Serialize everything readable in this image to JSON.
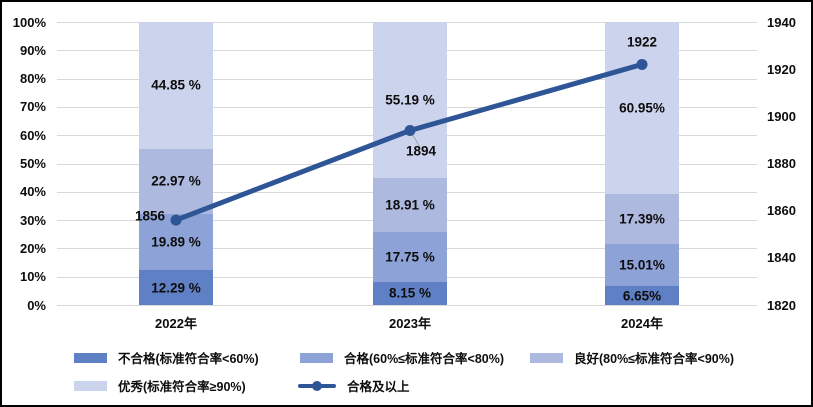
{
  "chart_data": {
    "type": "bar",
    "subtype": "stacked-percent-with-line",
    "categories": [
      "2022年",
      "2023年",
      "2024年"
    ],
    "left_axis": {
      "ticks": [
        "0%",
        "10%",
        "20%",
        "30%",
        "40%",
        "50%",
        "60%",
        "70%",
        "80%",
        "90%",
        "100%"
      ],
      "min": 0,
      "max": 100
    },
    "right_axis": {
      "ticks": [
        "1820",
        "1840",
        "1860",
        "1880",
        "1900",
        "1920",
        "1940"
      ],
      "min": 1820,
      "max": 1940
    },
    "series": [
      {
        "name": "不合格(标准符合率<60%)",
        "type": "bar",
        "color": "#6080c6",
        "values": [
          12.29,
          8.15,
          6.65
        ],
        "labels": [
          "12.29 %",
          "8.15 %",
          "6.65%"
        ]
      },
      {
        "name": "合格(60%≤标准符合率<80%)",
        "type": "bar",
        "color": "#8da2d6",
        "values": [
          19.89,
          17.75,
          15.01
        ],
        "labels": [
          "19.89 %",
          "17.75 %",
          "15.01%"
        ]
      },
      {
        "name": "良好(80%≤标准符合率<90%)",
        "type": "bar",
        "color": "#aeb9e0",
        "values": [
          22.97,
          18.91,
          17.39
        ],
        "labels": [
          "22.97 %",
          "18.91 %",
          "17.39%"
        ]
      },
      {
        "name": "优秀(标准符合率≥90%)",
        "type": "bar",
        "color": "#ccd3ec",
        "values": [
          44.85,
          55.19,
          60.95
        ],
        "labels": [
          "44.85 %",
          "55.19 %",
          "60.95%"
        ]
      },
      {
        "name": "合格及以上",
        "type": "line",
        "color": "#2e5596",
        "values": [
          1856,
          1894,
          1922
        ],
        "labels": [
          "1856",
          "1894",
          "1922"
        ]
      }
    ],
    "grid": true,
    "gridline_color": "#d9d9d9",
    "legend_position": "bottom"
  }
}
